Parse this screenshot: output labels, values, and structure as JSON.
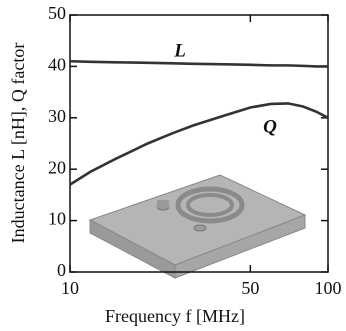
{
  "chart_data": {
    "type": "line",
    "xlabel": "Frequency f [MHz]",
    "ylabel": "Inductance L [nH], Q factor",
    "x": [
      10,
      12,
      15,
      20,
      25,
      30,
      40,
      50,
      60,
      70,
      80,
      90,
      100
    ],
    "series": [
      {
        "name": "L",
        "color": "#333333",
        "values": [
          41,
          40.9,
          40.8,
          40.7,
          40.6,
          40.5,
          40.4,
          40.3,
          40.2,
          40.2,
          40.1,
          40.0,
          40.0
        ]
      },
      {
        "name": "Q",
        "color": "#333333",
        "values": [
          17,
          19.5,
          22,
          25,
          27,
          28.5,
          30.5,
          32,
          32.7,
          32.8,
          32.2,
          31.2,
          30
        ]
      }
    ],
    "xlim": [
      10,
      100
    ],
    "xticks": [
      10,
      50,
      100
    ],
    "xscale": "log",
    "ylim": [
      0,
      50
    ],
    "yticks": [
      0,
      10,
      20,
      30,
      40,
      50
    ]
  }
}
